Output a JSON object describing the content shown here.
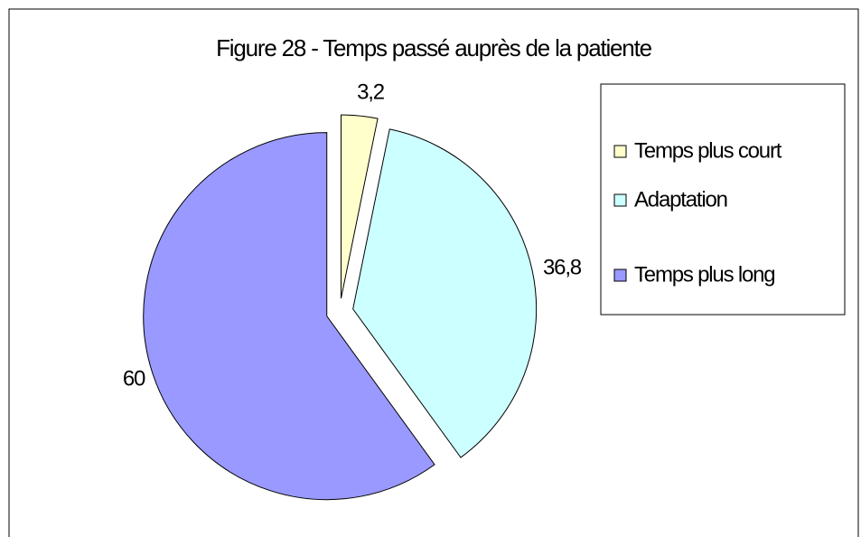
{
  "chart_data": {
    "type": "pie",
    "title": "Figure 28 - Temps passé auprès de la patiente",
    "categories": [
      "Temps plus court",
      "Adaptation",
      "Temps plus long"
    ],
    "values": [
      3.2,
      36.8,
      60
    ],
    "value_labels": [
      "3,2",
      "36,8",
      "60"
    ],
    "colors": [
      "#ffffcc",
      "#ccffff",
      "#9999ff"
    ],
    "legend": "right"
  }
}
